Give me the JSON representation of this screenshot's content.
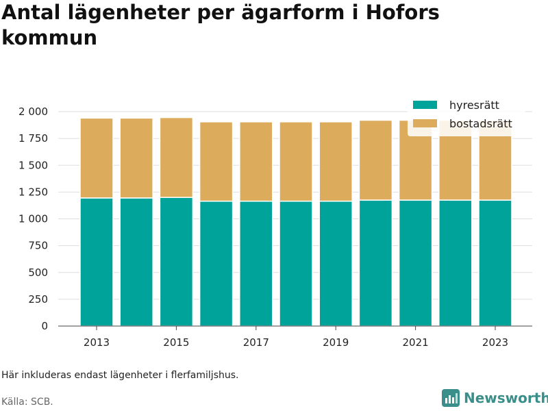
{
  "title": "Antal lägenheter per ägarform i Hofors kommun",
  "note": "Här inkluderas endast lägenheter i flerfamiljshus.",
  "source": "Källa: SCB.",
  "brand": "Newsworthy",
  "colors": {
    "hyresratt": "#00a39a",
    "bostadsratt": "#dcac5c",
    "grid": "#dddddd",
    "brand": "#3a8f8a"
  },
  "chart_data": {
    "type": "bar",
    "stacked": true,
    "categories": [
      "2013",
      "2014",
      "2015",
      "2016",
      "2017",
      "2018",
      "2019",
      "2020",
      "2021",
      "2022",
      "2023"
    ],
    "x_tick_labels": [
      "2013",
      "2015",
      "2017",
      "2019",
      "2021",
      "2023"
    ],
    "series": [
      {
        "name": "hyresrätt",
        "color": "#00a39a",
        "values": [
          1195,
          1195,
          1200,
          1165,
          1165,
          1165,
          1165,
          1175,
          1175,
          1175,
          1175
        ]
      },
      {
        "name": "bostadsrätt",
        "color": "#dcac5c",
        "values": [
          745,
          745,
          745,
          740,
          740,
          740,
          740,
          745,
          745,
          745,
          745
        ]
      }
    ],
    "ylim": [
      0,
      2000
    ],
    "y_ticks": [
      0,
      250,
      500,
      750,
      1000,
      1250,
      1500,
      1750,
      2000
    ],
    "y_tick_labels": [
      "0",
      "250",
      "500",
      "750",
      "1 000",
      "1 250",
      "1 500",
      "1 750",
      "2 000"
    ],
    "grid": true,
    "legend": "top-right"
  }
}
